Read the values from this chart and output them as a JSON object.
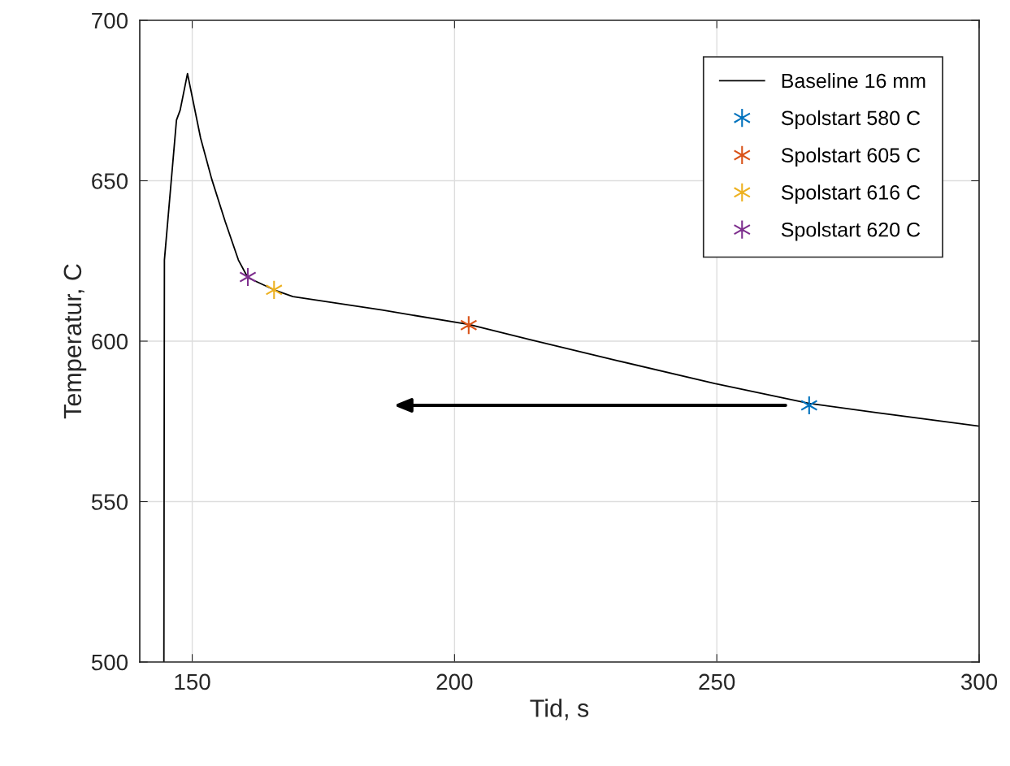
{
  "chart_data": {
    "type": "line",
    "xlabel": "Tid, s",
    "ylabel": "Temperatur, C",
    "xlim": [
      140,
      300
    ],
    "ylim": [
      500,
      700
    ],
    "xticks": [
      150,
      200,
      250,
      300
    ],
    "yticks": [
      500,
      550,
      600,
      650,
      700
    ],
    "grid": true,
    "legend": "top right",
    "series": [
      {
        "name": "Baseline 16 mm",
        "color": "#000000",
        "marker": "none",
        "x": [
          144.6,
          144.7,
          147.0,
          147.7,
          149.1,
          151.6,
          153.7,
          156.3,
          158.8,
          160.6,
          165.6,
          169.2,
          186.2,
          202.7,
          214.4,
          231.1,
          249.6,
          267.6,
          280.6,
          300.0
        ],
        "values": [
          500,
          625.3,
          668.9,
          672.0,
          683.4,
          663.3,
          650.6,
          637.2,
          625.3,
          619.8,
          616.0,
          613.9,
          609.7,
          605.2,
          600.5,
          593.9,
          586.8,
          580.6,
          577.7,
          573.5
        ]
      },
      {
        "name": "Spolstart 580 C",
        "color": "#0072bd",
        "type": "scatter",
        "marker": "cross",
        "x": [
          267.6
        ],
        "values": [
          580
        ]
      },
      {
        "name": "Spolstart 605 C",
        "color": "#d95319",
        "type": "scatter",
        "marker": "cross",
        "x": [
          202.7
        ],
        "values": [
          605
        ]
      },
      {
        "name": "Spolstart 616 C",
        "color": "#edb120",
        "type": "scatter",
        "marker": "cross",
        "x": [
          165.6
        ],
        "values": [
          616
        ]
      },
      {
        "name": "Spolstart 620 C",
        "color": "#7e2f8e",
        "type": "scatter",
        "marker": "cross",
        "x": [
          160.6
        ],
        "values": [
          620
        ]
      }
    ]
  }
}
